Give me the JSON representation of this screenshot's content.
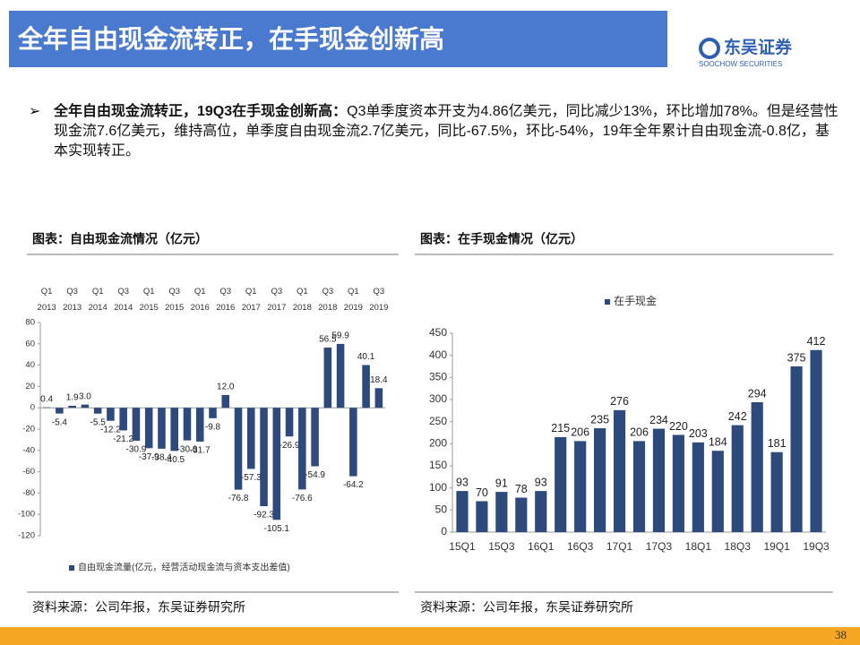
{
  "header": {
    "title": "全年自由现金流转正，在手现金创新高"
  },
  "logo": {
    "name": "东吴证券",
    "sub": "SOOCHOW SECURITIES"
  },
  "bullet": {
    "heading": "全年自由现金流转正，19Q3在手现金创新高：",
    "text": "Q3单季度资本开支为4.86亿美元，同比减少13%，环比增加78%。但是经营性现金流7.6亿美元，维持高位，单季度自由现金流2.7亿美元，同比-67.5%，环比-54%，19年全年累计自由现金流-0.8亿，基本实现转正。"
  },
  "page_number": "38",
  "chart_data": [
    {
      "type": "bar",
      "title": "图表：自由现金流情况（亿元）",
      "source": "资料来源：公司年报，东吴证券研究所",
      "categories": [
        "Q1 2013",
        null,
        "Q3 2013",
        null,
        "Q1 2014",
        null,
        "Q3 2014",
        null,
        "Q1 2015",
        null,
        "Q3 2015",
        null,
        "Q1 2016",
        null,
        "Q3 2016",
        null,
        "Q1 2017",
        null,
        "Q3 2017",
        null,
        "Q1 2018",
        null,
        "Q3 2018",
        null,
        "Q1 2019",
        null,
        "Q3 2019"
      ],
      "series": [
        {
          "name": "自由现金流量(亿元，经营活动现金流与资本支出差值)",
          "color": "#2e4a7d",
          "values": [
            0.4,
            -5.4,
            1.9,
            3.0,
            -5.5,
            -12.2,
            -21.2,
            -30.9,
            -37.9,
            -38.4,
            -40.5,
            -30.6,
            -31.7,
            -9.8,
            12.0,
            -76.8,
            -57.3,
            -92.3,
            -105.1,
            -26.9,
            -76.6,
            -54.9,
            56.5,
            59.9,
            -64.2,
            40.1,
            18.4
          ],
          "value_labels": [
            "0.4",
            "-5.4",
            "1.9",
            "3.0",
            "-5.5",
            "-12.2",
            "-21.2",
            "-30.9",
            "-37.9",
            "-38.4",
            "-40.5",
            "-30.6",
            "-31.7",
            "-9.8",
            "12.0",
            "-76.8",
            "-57.3",
            "-92.3",
            "-105.1",
            "-26.9",
            "-76.6",
            "-54.9",
            "56.5",
            "59.9",
            "-64.2",
            "40.1",
            "18.4"
          ]
        }
      ],
      "ylim": [
        -120,
        80
      ],
      "yticks": [
        -120,
        -100,
        -80,
        -60,
        -40,
        -20,
        0,
        20,
        40,
        60,
        80
      ],
      "legend": "bottom",
      "category_axis": "top"
    },
    {
      "type": "bar",
      "title": "图表：在手现金情况（亿元）",
      "source": "资料来源：公司年报，东吴证券研究所",
      "categories": [
        "15Q1",
        null,
        "15Q3",
        null,
        "16Q1",
        null,
        "16Q3",
        null,
        "17Q1",
        null,
        "17Q3",
        null,
        "18Q1",
        null,
        "18Q3",
        null,
        "19Q1",
        null,
        "19Q3"
      ],
      "series": [
        {
          "name": "在手现金",
          "color": "#2e4a7d",
          "values": [
            93,
            70,
            91,
            78,
            93,
            215,
            206,
            235,
            276,
            206,
            234,
            220,
            203,
            184,
            242,
            294,
            181,
            375,
            412
          ]
        }
      ],
      "ylim": [
        0,
        450
      ],
      "yticks": [
        0,
        50,
        100,
        150,
        200,
        250,
        300,
        350,
        400,
        450
      ],
      "legend": "top",
      "category_axis": "bottom"
    }
  ]
}
